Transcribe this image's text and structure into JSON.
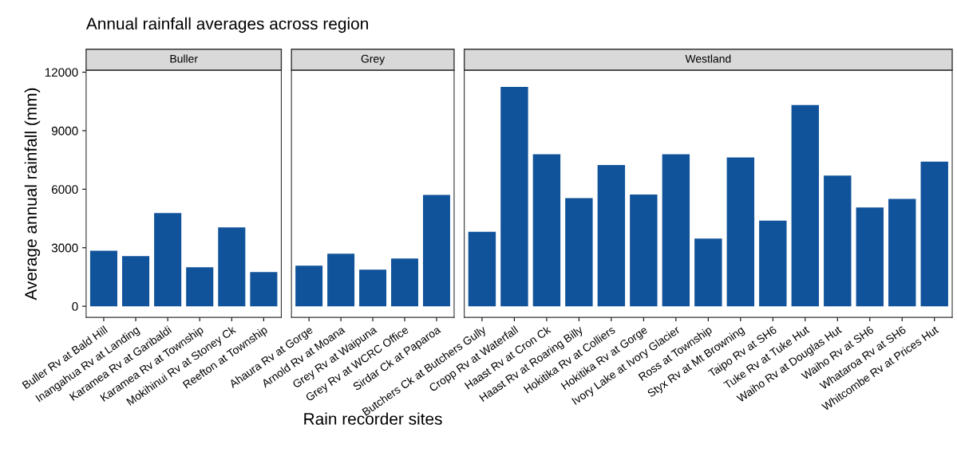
{
  "chart_data": [
    {
      "type": "bar",
      "title": "Annual rainfall averages across region",
      "subtitle": "Buller",
      "ylabel": "Average annual rainfall (mm)",
      "color": "#11539a",
      "categories": [
        "Buller Rv at Bald Hill",
        "Inangahua Rv at Landing",
        "Karamea Rv at Garibaldi",
        "Karamea Rv at Township",
        "Mokihinui Rv at Stoney Ck",
        "Reefton at Township"
      ],
      "values": [
        2850,
        2570,
        4780,
        2000,
        4040,
        1750
      ],
      "ylim": [
        -570,
        12100
      ],
      "yticks": [
        0,
        3000,
        6000,
        9000,
        12000
      ]
    },
    {
      "type": "bar",
      "subtitle": "Grey",
      "xlabel": "Rain recorder sites",
      "color": "#11539a",
      "categories": [
        "Ahaura Rv at Gorge",
        "Arnold Rv at Moana",
        "Grey Rv at Waipuna",
        "Grey Rv at WCRC Office",
        "Sirdar Ck at Paparoa"
      ],
      "values": [
        2080,
        2690,
        1880,
        2450,
        5710
      ],
      "ylim": [
        -570,
        12100
      ],
      "yticks": [
        0,
        3000,
        6000,
        9000,
        12000
      ],
      "tick_labels": "x"
    },
    {
      "type": "bar",
      "subtitle": "Westland",
      "color": "#11539a",
      "categories": [
        "Butchers Ck at Butchers Gully",
        "Cropp Rv at Waterfall",
        "Haast Rv at Cron Ck",
        "Haast Rv at Roaring Billy",
        "Hokitika Rv at Colliers",
        "Hokitika Rv at Gorge",
        "Ivory Lake at Ivory Glacier",
        "Ross at Township",
        "Styx Rv at Mt Browning",
        "Taipo Rv at SH6",
        "Tuke Rv at Tuke Hut",
        "Waiho Rv at Douglas Hut",
        "Waiho Rv at SH6",
        "Whataroa Rv at SH6",
        "Whitcombe Rv at Prices Hut"
      ],
      "values": [
        3820,
        11250,
        7790,
        5540,
        7240,
        5730,
        7790,
        3470,
        7630,
        4390,
        10320,
        6700,
        5060,
        5500,
        7410
      ],
      "ylim": [
        -570,
        12100
      ],
      "yticks": [
        0,
        3000,
        6000,
        9000,
        12000
      ],
      "tick_labels": "x"
    }
  ]
}
